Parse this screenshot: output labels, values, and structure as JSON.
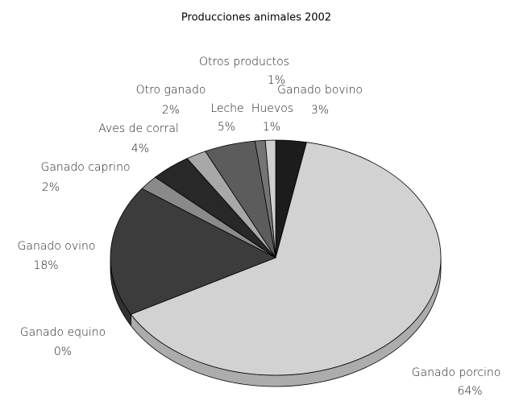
{
  "chart_data": {
    "type": "pie3d",
    "title": "Producciones animales 2002",
    "categories": [
      "Ganado bovino",
      "Ganado porcino",
      "Ganado equino",
      "Ganado ovino",
      "Ganado caprino",
      "Aves de corral",
      "Otro ganado",
      "Leche",
      "Huevos",
      "Otros productos"
    ],
    "values": [
      3,
      64,
      0,
      18,
      2,
      4,
      2,
      5,
      1,
      1
    ],
    "value_labels": [
      "3%",
      "64%",
      "0%",
      "18%",
      "2%",
      "4%",
      "2%",
      "5%",
      "1%",
      "1%"
    ],
    "colors": [
      "#1c1c1c",
      "#d2d2d2",
      "#8c8c8c",
      "#3c3c3c",
      "#8a8a8a",
      "#282828",
      "#a8a8a8",
      "#5c5c5c",
      "#747474",
      "#cfcfcf"
    ]
  }
}
